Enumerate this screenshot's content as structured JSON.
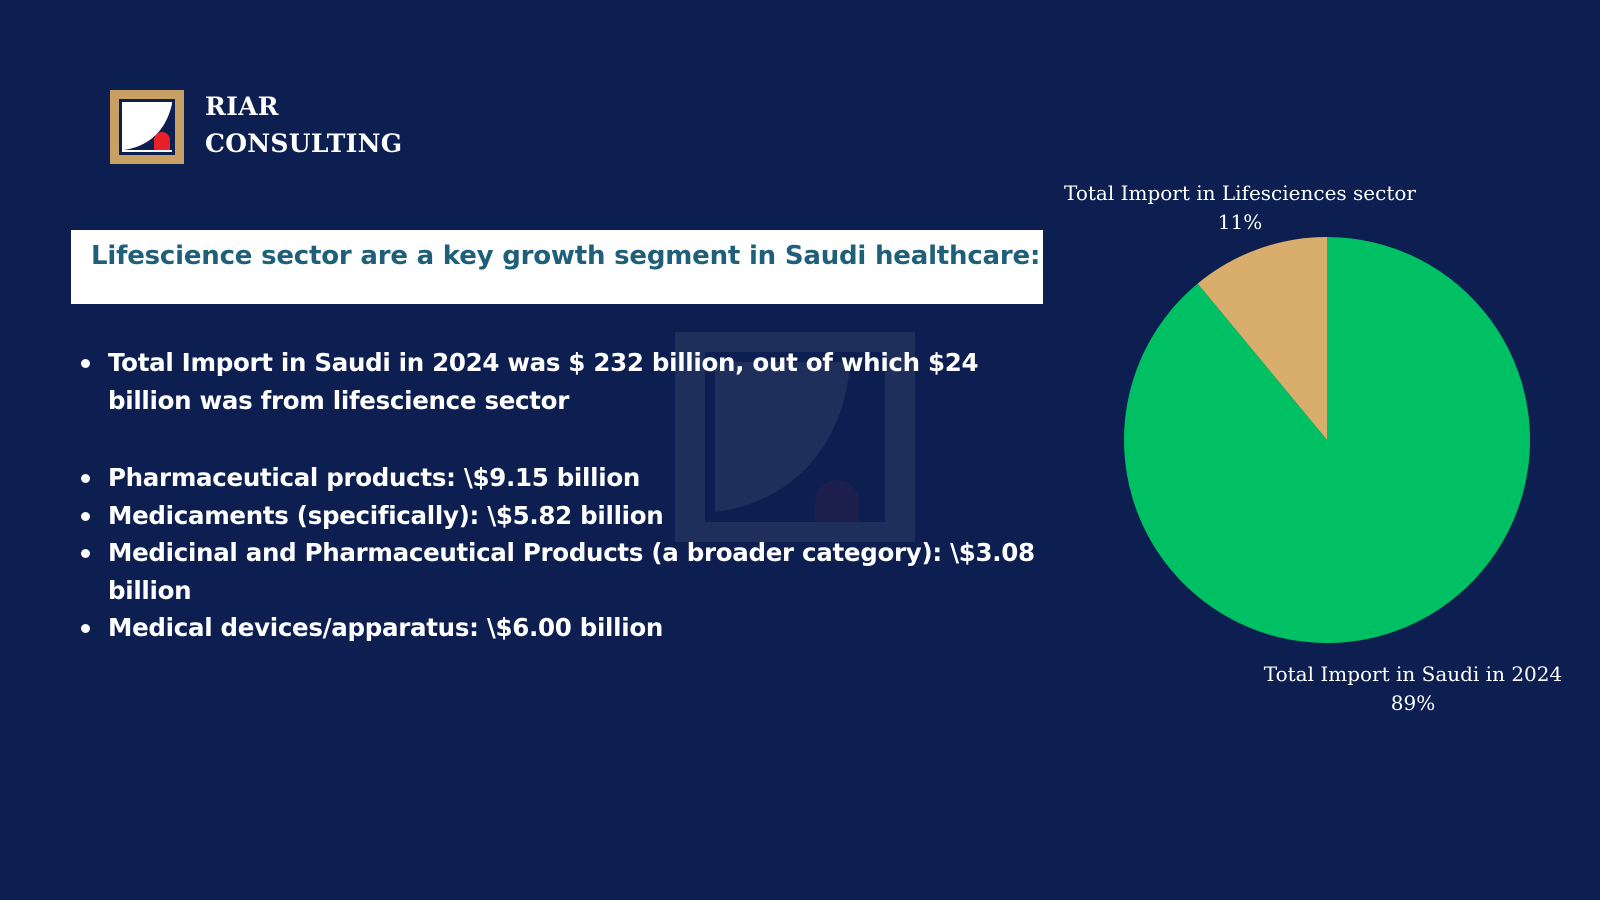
{
  "brand": {
    "line1": "RIAR",
    "line2": "CONSULTING"
  },
  "headline": "Lifescience sector are a key growth segment in Saudi healthcare:",
  "bullets": [
    "Total Import in Saudi in 2024 was $ 232 billion, out of which $24 billion was from lifescience sector",
    "Pharmaceutical products: \\$9.15 billion",
    "Medicaments (specifically): \\$5.82 billion",
    "Medicinal and Pharmaceutical Products (a broader category): \\$3.08 billion",
    "Medical devices/apparatus: \\$6.00 billion"
  ],
  "colors": {
    "background": "#0d1f50",
    "headline_text": "#1f5f7a",
    "pie_total": "#00c064",
    "pie_lifescience": "#d9ad6b",
    "logo_gold": "#c9a064",
    "logo_red": "#e8202a"
  },
  "chart_data": {
    "type": "pie",
    "slices": [
      {
        "label": "Total Import in Lifesciences sector",
        "value": 11,
        "percent_label": "11%",
        "color": "#d9ad6b"
      },
      {
        "label": "Total Import in Saudi in 2024",
        "value": 89,
        "percent_label": "89%",
        "color": "#00c064"
      }
    ]
  }
}
